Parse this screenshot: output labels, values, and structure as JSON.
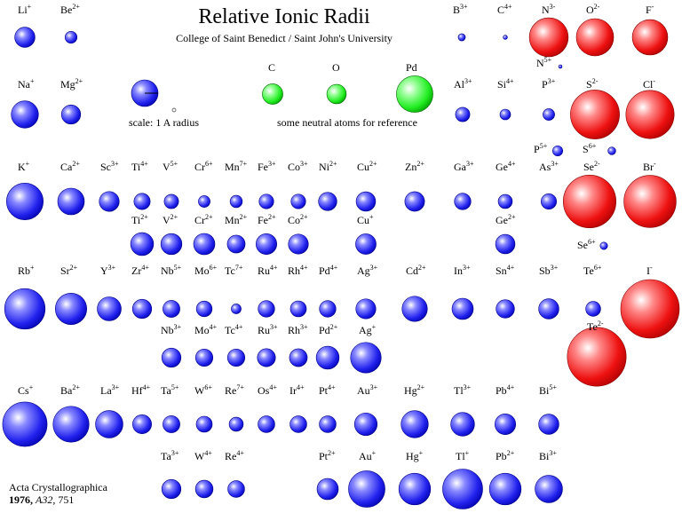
{
  "title": "Relative Ionic Radii",
  "subtitle": "College of Saint Benedict / Saint John's University",
  "citation": {
    "journal": "Acta Crystallographica",
    "year": "1976,",
    "volume": "A32",
    "pages": ", 751"
  },
  "labels": {
    "scale": "scale: 1 A radius",
    "neutral": "some neutral atoms for reference"
  },
  "colors": {
    "cation": "#2222ee",
    "anion": "#ee1111",
    "neutral": "#22ee22"
  },
  "chart_data": {
    "type": "bubble",
    "note": "sphere size proportional to ionic radius",
    "scale_radius_angstrom": 1.0,
    "ions": [
      {
        "s": "Li",
        "c": "+",
        "r": 0.76,
        "k": "cation"
      },
      {
        "s": "Be",
        "c": "2+",
        "r": 0.45,
        "k": "cation"
      },
      {
        "s": "B",
        "c": "3+",
        "r": 0.27,
        "k": "cation"
      },
      {
        "s": "C",
        "c": "4+",
        "r": 0.16,
        "k": "cation"
      },
      {
        "s": "N",
        "c": "3-",
        "r": 1.46,
        "k": "anion"
      },
      {
        "s": "O",
        "c": "2-",
        "r": 1.4,
        "k": "anion"
      },
      {
        "s": "F",
        "c": "-",
        "r": 1.33,
        "k": "anion"
      },
      {
        "s": "N",
        "c": "5+",
        "r": 0.13,
        "k": "cation"
      },
      {
        "s": "Na",
        "c": "+",
        "r": 1.02,
        "k": "cation"
      },
      {
        "s": "Mg",
        "c": "2+",
        "r": 0.72,
        "k": "cation"
      },
      {
        "s": "C",
        "c": "",
        "r": 0.77,
        "k": "neutral"
      },
      {
        "s": "O",
        "c": "",
        "r": 0.73,
        "k": "neutral"
      },
      {
        "s": "Pd",
        "c": "",
        "r": 1.37,
        "k": "neutral"
      },
      {
        "s": "Al",
        "c": "3+",
        "r": 0.54,
        "k": "cation"
      },
      {
        "s": "Si",
        "c": "4+",
        "r": 0.4,
        "k": "cation"
      },
      {
        "s": "P",
        "c": "3+",
        "r": 0.44,
        "k": "cation"
      },
      {
        "s": "S",
        "c": "2-",
        "r": 1.84,
        "k": "anion"
      },
      {
        "s": "Cl",
        "c": "-",
        "r": 1.81,
        "k": "anion"
      },
      {
        "s": "P",
        "c": "5+",
        "r": 0.38,
        "k": "cation"
      },
      {
        "s": "S",
        "c": "6+",
        "r": 0.29,
        "k": "cation"
      },
      {
        "s": "K",
        "c": "+",
        "r": 1.38,
        "k": "cation"
      },
      {
        "s": "Ca",
        "c": "2+",
        "r": 1.0,
        "k": "cation"
      },
      {
        "s": "Sc",
        "c": "3+",
        "r": 0.75,
        "k": "cation"
      },
      {
        "s": "Ti",
        "c": "4+",
        "r": 0.61,
        "k": "cation"
      },
      {
        "s": "V",
        "c": "5+",
        "r": 0.54,
        "k": "cation"
      },
      {
        "s": "Cr",
        "c": "6+",
        "r": 0.44,
        "k": "cation"
      },
      {
        "s": "Mn",
        "c": "7+",
        "r": 0.46,
        "k": "cation"
      },
      {
        "s": "Fe",
        "c": "3+",
        "r": 0.55,
        "k": "cation"
      },
      {
        "s": "Co",
        "c": "3+",
        "r": 0.55,
        "k": "cation"
      },
      {
        "s": "Ni",
        "c": "2+",
        "r": 0.69,
        "k": "cation"
      },
      {
        "s": "Cu",
        "c": "2+",
        "r": 0.73,
        "k": "cation"
      },
      {
        "s": "Zn",
        "c": "2+",
        "r": 0.74,
        "k": "cation"
      },
      {
        "s": "Ga",
        "c": "3+",
        "r": 0.62,
        "k": "cation"
      },
      {
        "s": "Ge",
        "c": "4+",
        "r": 0.53,
        "k": "cation"
      },
      {
        "s": "As",
        "c": "3+",
        "r": 0.58,
        "k": "cation"
      },
      {
        "s": "Se",
        "c": "2-",
        "r": 1.98,
        "k": "anion"
      },
      {
        "s": "Br",
        "c": "-",
        "r": 1.96,
        "k": "anion"
      },
      {
        "s": "Ti",
        "c": "2+",
        "r": 0.86,
        "k": "cation"
      },
      {
        "s": "V",
        "c": "2+",
        "r": 0.79,
        "k": "cation"
      },
      {
        "s": "Cr",
        "c": "2+",
        "r": 0.8,
        "k": "cation"
      },
      {
        "s": "Mn",
        "c": "2+",
        "r": 0.67,
        "k": "cation"
      },
      {
        "s": "Fe",
        "c": "2+",
        "r": 0.78,
        "k": "cation"
      },
      {
        "s": "Co",
        "c": "2+",
        "r": 0.75,
        "k": "cation"
      },
      {
        "s": "Cu",
        "c": "+",
        "r": 0.77,
        "k": "cation"
      },
      {
        "s": "Ge",
        "c": "2+",
        "r": 0.73,
        "k": "cation"
      },
      {
        "s": "Se",
        "c": "6+",
        "r": 0.28,
        "k": "cation"
      },
      {
        "s": "Rb",
        "c": "+",
        "r": 1.52,
        "k": "cation"
      },
      {
        "s": "Sr",
        "c": "2+",
        "r": 1.18,
        "k": "cation"
      },
      {
        "s": "Y",
        "c": "3+",
        "r": 0.9,
        "k": "cation"
      },
      {
        "s": "Zr",
        "c": "4+",
        "r": 0.72,
        "k": "cation"
      },
      {
        "s": "Nb",
        "c": "5+",
        "r": 0.64,
        "k": "cation"
      },
      {
        "s": "Mo",
        "c": "6+",
        "r": 0.59,
        "k": "cation"
      },
      {
        "s": "Tc",
        "c": "7+",
        "r": 0.37,
        "k": "cation"
      },
      {
        "s": "Ru",
        "c": "4+",
        "r": 0.62,
        "k": "cation"
      },
      {
        "s": "Rh",
        "c": "4+",
        "r": 0.6,
        "k": "cation"
      },
      {
        "s": "Pd",
        "c": "4+",
        "r": 0.62,
        "k": "cation"
      },
      {
        "s": "Ag",
        "c": "3+",
        "r": 0.75,
        "k": "cation"
      },
      {
        "s": "Cd",
        "c": "2+",
        "r": 0.95,
        "k": "cation"
      },
      {
        "s": "In",
        "c": "3+",
        "r": 0.8,
        "k": "cation"
      },
      {
        "s": "Sn",
        "c": "4+",
        "r": 0.69,
        "k": "cation"
      },
      {
        "s": "Sb",
        "c": "3+",
        "r": 0.76,
        "k": "cation"
      },
      {
        "s": "Te",
        "c": "6+",
        "r": 0.56,
        "k": "cation"
      },
      {
        "s": "I",
        "c": "-",
        "r": 2.2,
        "k": "anion"
      },
      {
        "s": "Nb",
        "c": "3+",
        "r": 0.72,
        "k": "cation"
      },
      {
        "s": "Mo",
        "c": "4+",
        "r": 0.65,
        "k": "cation"
      },
      {
        "s": "Tc",
        "c": "4+",
        "r": 0.65,
        "k": "cation"
      },
      {
        "s": "Ru",
        "c": "3+",
        "r": 0.68,
        "k": "cation"
      },
      {
        "s": "Rh",
        "c": "3+",
        "r": 0.67,
        "k": "cation"
      },
      {
        "s": "Pd",
        "c": "2+",
        "r": 0.86,
        "k": "cation"
      },
      {
        "s": "Ag",
        "c": "+",
        "r": 1.15,
        "k": "cation"
      },
      {
        "s": "Te",
        "c": "2-",
        "r": 2.21,
        "k": "anion"
      },
      {
        "s": "Cs",
        "c": "+",
        "r": 1.67,
        "k": "cation"
      },
      {
        "s": "Ba",
        "c": "2+",
        "r": 1.35,
        "k": "cation"
      },
      {
        "s": "La",
        "c": "3+",
        "r": 1.03,
        "k": "cation"
      },
      {
        "s": "Hf",
        "c": "4+",
        "r": 0.71,
        "k": "cation"
      },
      {
        "s": "Ta",
        "c": "5+",
        "r": 0.64,
        "k": "cation"
      },
      {
        "s": "W",
        "c": "6+",
        "r": 0.6,
        "k": "cation"
      },
      {
        "s": "Re",
        "c": "7+",
        "r": 0.53,
        "k": "cation"
      },
      {
        "s": "Os",
        "c": "4+",
        "r": 0.63,
        "k": "cation"
      },
      {
        "s": "Ir",
        "c": "4+",
        "r": 0.63,
        "k": "cation"
      },
      {
        "s": "Pt",
        "c": "4+",
        "r": 0.63,
        "k": "cation"
      },
      {
        "s": "Au",
        "c": "3+",
        "r": 0.85,
        "k": "cation"
      },
      {
        "s": "Hg",
        "c": "2+",
        "r": 1.02,
        "k": "cation"
      },
      {
        "s": "Tl",
        "c": "3+",
        "r": 0.89,
        "k": "cation"
      },
      {
        "s": "Pb",
        "c": "4+",
        "r": 0.78,
        "k": "cation"
      },
      {
        "s": "Bi",
        "c": "5+",
        "r": 0.76,
        "k": "cation"
      },
      {
        "s": "Ta",
        "c": "3+",
        "r": 0.72,
        "k": "cation"
      },
      {
        "s": "W",
        "c": "4+",
        "r": 0.66,
        "k": "cation"
      },
      {
        "s": "Re",
        "c": "4+",
        "r": 0.63,
        "k": "cation"
      },
      {
        "s": "Pt",
        "c": "2+",
        "r": 0.8,
        "k": "cation"
      },
      {
        "s": "Au",
        "c": "+",
        "r": 1.37,
        "k": "cation"
      },
      {
        "s": "Hg",
        "c": "+",
        "r": 1.19,
        "k": "cation"
      },
      {
        "s": "Tl",
        "c": "+",
        "r": 1.5,
        "k": "cation"
      },
      {
        "s": "Pb",
        "c": "2+",
        "r": 1.19,
        "k": "cation"
      },
      {
        "s": "Bi",
        "c": "3+",
        "r": 1.03,
        "k": "cation"
      }
    ]
  }
}
